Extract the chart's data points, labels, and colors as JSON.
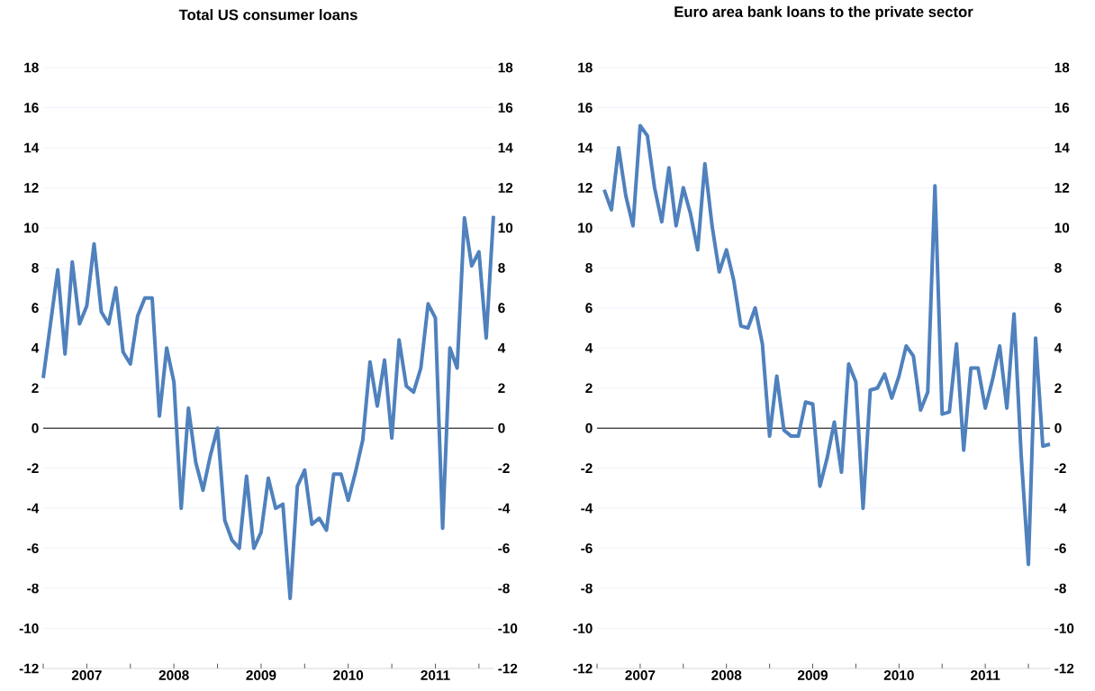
{
  "chart_data": [
    {
      "type": "line",
      "title": "Total US consumer loans",
      "x": [
        "2007-01",
        "2007-02",
        "2007-03",
        "2007-04",
        "2007-05",
        "2007-06",
        "2007-07",
        "2007-08",
        "2007-09",
        "2007-10",
        "2007-11",
        "2007-12",
        "2008-01",
        "2008-02",
        "2008-03",
        "2008-04",
        "2008-05",
        "2008-06",
        "2008-07",
        "2008-08",
        "2008-09",
        "2008-10",
        "2008-11",
        "2008-12",
        "2009-01",
        "2009-02",
        "2009-03",
        "2009-04",
        "2009-05",
        "2009-06",
        "2009-07",
        "2009-08",
        "2009-09",
        "2009-10",
        "2009-11",
        "2009-12",
        "2010-01",
        "2010-02",
        "2010-03",
        "2010-04",
        "2010-05",
        "2010-06",
        "2010-07",
        "2010-08",
        "2010-09",
        "2010-10",
        "2010-11",
        "2010-12",
        "2011-01",
        "2011-02",
        "2011-03",
        "2011-04",
        "2011-05",
        "2011-06",
        "2011-07",
        "2011-08",
        "2011-09",
        "2011-10",
        "2011-11",
        "2011-12",
        "2012-01",
        "2012-02",
        "2012-03"
      ],
      "series": [
        {
          "color": "#4f81bd",
          "values": [
            2.5,
            5.2,
            7.9,
            3.7,
            8.3,
            5.2,
            6.1,
            9.2,
            5.8,
            5.2,
            7.0,
            3.8,
            3.2,
            5.6,
            6.5,
            6.5,
            0.6,
            4.0,
            2.3,
            -4.0,
            1.0,
            -1.7,
            -3.1,
            -1.4,
            0.0,
            -4.6,
            -5.6,
            -6.0,
            -2.4,
            -6.0,
            -5.2,
            -2.5,
            -4.0,
            -3.8,
            -8.5,
            -2.9,
            -2.1,
            -4.8,
            -4.5,
            -5.1,
            -2.3,
            -2.3,
            -3.6,
            -2.2,
            -0.6,
            3.3,
            1.1,
            3.4,
            -0.5,
            4.4,
            2.1,
            1.8,
            3.0,
            6.2,
            5.5,
            -5.0,
            4.0,
            3.0,
            10.5,
            8.1,
            8.8,
            4.5,
            10.6
          ]
        }
      ],
      "xlim": [
        "2007-01",
        "2012-03"
      ],
      "xticks": [
        {
          "value": "2007-01",
          "label": null
        },
        {
          "value": "2007-07",
          "label": "2007"
        },
        {
          "value": "2008-01",
          "label": null
        },
        {
          "value": "2008-07",
          "label": "2008"
        },
        {
          "value": "2009-01",
          "label": null
        },
        {
          "value": "2009-07",
          "label": "2009"
        },
        {
          "value": "2010-01",
          "label": null
        },
        {
          "value": "2010-07",
          "label": "2010"
        },
        {
          "value": "2011-01",
          "label": null
        },
        {
          "value": "2011-07",
          "label": "2011"
        },
        {
          "value": "2012-01",
          "label": null
        }
      ],
      "ylim": [
        -12,
        18
      ],
      "yticks": [
        -12,
        -10,
        -8,
        -6,
        -4,
        -2,
        0,
        2,
        4,
        6,
        8,
        10,
        12,
        14,
        16,
        18
      ],
      "y2lim": [
        -12,
        18
      ],
      "y2ticks": [
        -12,
        -10,
        -8,
        -6,
        -4,
        -2,
        0,
        2,
        4,
        6,
        8,
        10,
        12,
        14,
        16,
        18
      ],
      "grid": "y",
      "ref_lines": [
        {
          "axis": "y",
          "value": 0,
          "color": "#000000"
        }
      ]
    },
    {
      "type": "line",
      "title": "Euro area bank loans to the private sector",
      "x": [
        "2007-02",
        "2007-03",
        "2007-04",
        "2007-05",
        "2007-06",
        "2007-07",
        "2007-08",
        "2007-09",
        "2007-10",
        "2007-11",
        "2007-12",
        "2008-01",
        "2008-02",
        "2008-03",
        "2008-04",
        "2008-05",
        "2008-06",
        "2008-07",
        "2008-08",
        "2008-09",
        "2008-10",
        "2008-11",
        "2008-12",
        "2009-01",
        "2009-02",
        "2009-03",
        "2009-04",
        "2009-05",
        "2009-06",
        "2009-07",
        "2009-08",
        "2009-09",
        "2009-10",
        "2009-11",
        "2009-12",
        "2010-01",
        "2010-02",
        "2010-03",
        "2010-04",
        "2010-05",
        "2010-06",
        "2010-07",
        "2010-08",
        "2010-09",
        "2010-10",
        "2010-11",
        "2010-12",
        "2011-01",
        "2011-02",
        "2011-03",
        "2011-04",
        "2011-05",
        "2011-06",
        "2011-07",
        "2011-08",
        "2011-09",
        "2011-10",
        "2011-11",
        "2011-12",
        "2012-01",
        "2012-02",
        "2012-03",
        "2012-04"
      ],
      "series": [
        {
          "color": "#4f81bd",
          "values": [
            11.9,
            10.9,
            14.0,
            11.6,
            10.1,
            15.1,
            14.6,
            12.0,
            10.3,
            13.0,
            10.1,
            12.0,
            10.7,
            8.9,
            13.2,
            10.1,
            7.8,
            8.9,
            7.4,
            5.1,
            5.0,
            6.0,
            4.2,
            -0.4,
            2.6,
            -0.1,
            -0.4,
            -0.4,
            1.3,
            1.2,
            -2.9,
            -1.5,
            0.3,
            -2.2,
            3.2,
            2.3,
            -4.0,
            1.9,
            2.0,
            2.7,
            1.5,
            2.6,
            4.1,
            3.6,
            0.9,
            1.8,
            12.1,
            0.7,
            0.8,
            4.2,
            -1.1,
            3.0,
            3.0,
            1.0,
            2.4,
            4.1,
            1.0,
            5.7,
            -1.4,
            -6.8,
            4.5,
            -0.9,
            -0.8
          ]
        }
      ],
      "xlim": [
        "2007-01",
        "2012-04"
      ],
      "xticks": [
        {
          "value": "2007-01",
          "label": null
        },
        {
          "value": "2007-07",
          "label": "2007"
        },
        {
          "value": "2008-01",
          "label": null
        },
        {
          "value": "2008-07",
          "label": "2008"
        },
        {
          "value": "2009-01",
          "label": null
        },
        {
          "value": "2009-07",
          "label": "2009"
        },
        {
          "value": "2010-01",
          "label": null
        },
        {
          "value": "2010-07",
          "label": "2010"
        },
        {
          "value": "2011-01",
          "label": null
        },
        {
          "value": "2011-07",
          "label": "2011"
        },
        {
          "value": "2012-01",
          "label": null
        }
      ],
      "ylim": [
        -12,
        18
      ],
      "yticks": [
        -12,
        -10,
        -8,
        -6,
        -4,
        -2,
        0,
        2,
        4,
        6,
        8,
        10,
        12,
        14,
        16,
        18
      ],
      "y2lim": [
        -12,
        18
      ],
      "y2ticks": [
        -12,
        -10,
        -8,
        -6,
        -4,
        -2,
        0,
        2,
        4,
        6,
        8,
        10,
        12,
        14,
        16,
        18
      ],
      "grid": "y",
      "ref_lines": [
        {
          "axis": "y",
          "value": 0,
          "color": "#000000"
        }
      ]
    }
  ]
}
